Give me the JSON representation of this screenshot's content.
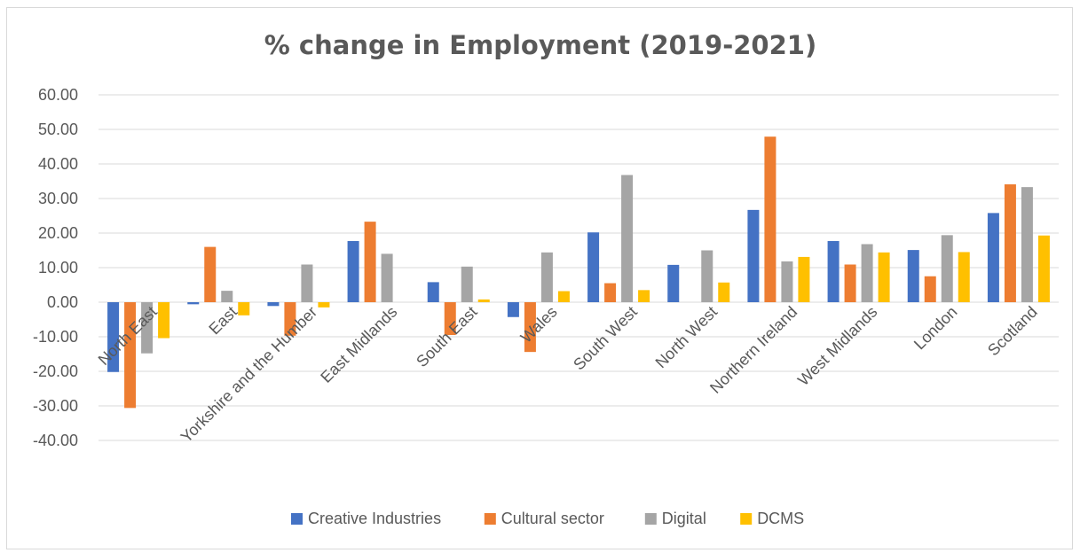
{
  "chart_data": {
    "type": "bar",
    "title": "% change in Employment (2019-2021)",
    "xlabel": "",
    "ylabel": "",
    "ylim": [
      -40,
      60
    ],
    "yticks": [
      "60.00",
      "50.00",
      "40.00",
      "30.00",
      "20.00",
      "10.00",
      "0.00",
      "-10.00",
      "-20.00",
      "-30.00",
      "-40.00"
    ],
    "grid": true,
    "legend_position": "bottom",
    "categories": [
      "North East",
      "East",
      "Yorkshire and the Humber",
      "East Midlands",
      "South East",
      "Wales",
      "South West",
      "North West",
      "Northern Ireland",
      "West Midlands",
      "London",
      "Scotland"
    ],
    "series": [
      {
        "name": "Creative Industries",
        "color": "#4472c4",
        "values": [
          -20.2,
          -0.6,
          -1.1,
          17.7,
          5.8,
          -4.3,
          20.2,
          10.8,
          26.7,
          17.7,
          15.1,
          25.8
        ]
      },
      {
        "name": "Cultural sector",
        "color": "#ed7d31",
        "values": [
          -30.6,
          16.0,
          -9.7,
          23.3,
          -9.5,
          -14.4,
          5.5,
          0.0,
          47.9,
          10.9,
          7.5,
          34.1
        ]
      },
      {
        "name": "Digital",
        "color": "#a5a5a5",
        "values": [
          -14.8,
          3.3,
          10.9,
          14.0,
          10.3,
          14.4,
          36.8,
          15.0,
          11.8,
          16.8,
          19.4,
          33.3
        ]
      },
      {
        "name": "DCMS",
        "color": "#ffc000",
        "values": [
          -10.4,
          -3.8,
          -1.5,
          0.0,
          0.8,
          3.2,
          3.5,
          5.7,
          13.1,
          14.4,
          14.5,
          19.3
        ]
      }
    ]
  }
}
